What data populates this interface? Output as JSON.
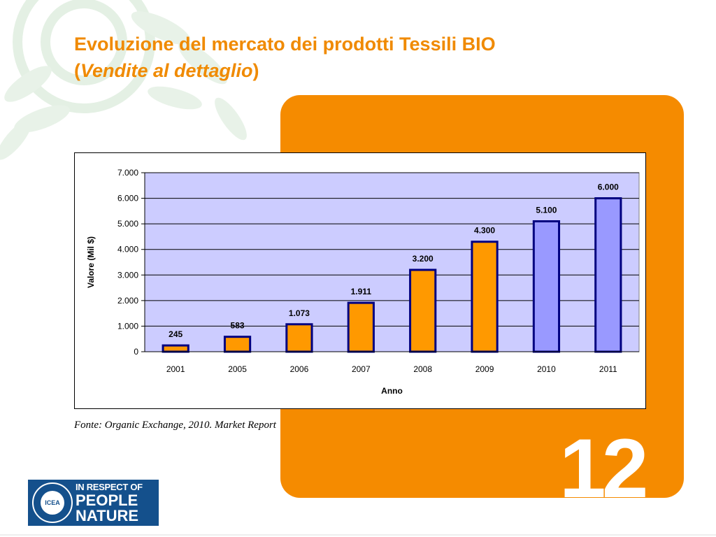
{
  "title": {
    "line1": "Evoluzione del mercato dei prodotti Tessili BIO",
    "line2_open": "(",
    "line2_italic": "Vendite al dettaglio",
    "line2_close": ")"
  },
  "slide_number": "12",
  "source": "Fonte: Organic Exchange, 2010. Market Report",
  "logo": {
    "seal_text": "ICEA",
    "line1": "IN RESPECT OF",
    "line2": "PEOPLE",
    "line3": "NATURE",
    "ampersand": "&"
  },
  "colors": {
    "accent_orange": "#f58b00",
    "title_orange": "#f08a00",
    "plot_background": "#ccccff",
    "bar_actual": "#ff9900",
    "bar_forecast": "#9999ff",
    "bar_outline": "#000080"
  },
  "chart_data": {
    "type": "bar",
    "categories": [
      "2001",
      "2005",
      "2006",
      "2007",
      "2008",
      "2009",
      "2010",
      "2011"
    ],
    "values": [
      245,
      583,
      1073,
      1911,
      3200,
      4300,
      5100,
      6000
    ],
    "data_labels": [
      "245",
      "583",
      "1.073",
      "1.911",
      "3.200",
      "4.300",
      "5.100",
      "6.000"
    ],
    "bar_color_keys": [
      "bar_actual",
      "bar_actual",
      "bar_actual",
      "bar_actual",
      "bar_actual",
      "bar_actual",
      "bar_forecast",
      "bar_forecast"
    ],
    "title": "",
    "xlabel": "Anno",
    "ylabel": "Valore (Mil $)",
    "ylim": [
      0,
      7000
    ],
    "y_ticks": [
      0,
      1000,
      2000,
      3000,
      4000,
      5000,
      6000,
      7000
    ],
    "y_tick_labels": [
      "0",
      "1.000",
      "2.000",
      "3.000",
      "4.000",
      "5.000",
      "6.000",
      "7.000"
    ],
    "grid": true,
    "legend": "none"
  }
}
